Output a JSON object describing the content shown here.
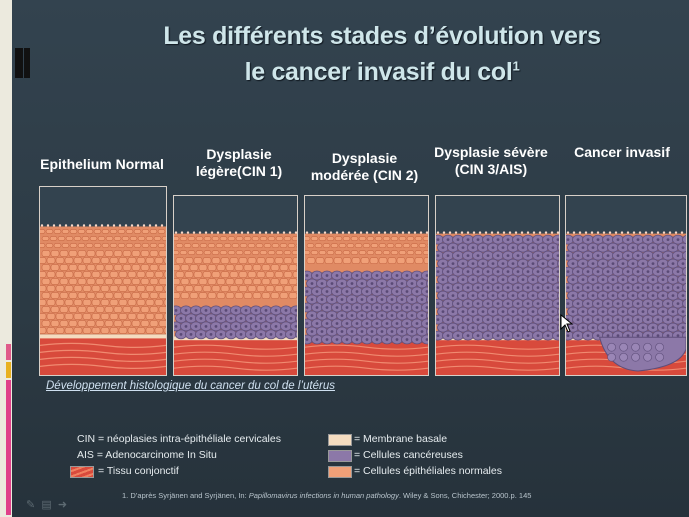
{
  "title": {
    "line1": "Les différents stades d’évolution vers",
    "line2": "le cancer invasif du col",
    "sup": "1"
  },
  "stages": [
    {
      "label": "Epithelium Normal",
      "cancer_level": 0.0
    },
    {
      "label": "Dysplasie légère(CIN 1)",
      "cancer_level": 0.33
    },
    {
      "label": "Dysplasie modérée (CIN 2)",
      "cancer_level": 0.66
    },
    {
      "label": "Dysplasie sévère (CIN 3/AIS)",
      "cancer_level": 1.0
    },
    {
      "label": "Cancer invasif",
      "cancer_level": 1.0
    }
  ],
  "caption": "Développement histologique du cancer du col de l’utérus",
  "legend": {
    "cin": "CIN = néoplasies intra-épithéliale cervicales",
    "ais": "AIS = Adenocarcinome In Situ",
    "tissu": "= Tissu conjonctif",
    "membrane": "= Membrane basale",
    "cancereuses": "= Cellules cancéreuses",
    "normales": "= Cellules épithéliales normales"
  },
  "reference": {
    "prefix": "1. D’après Syrjänen and Syrjänen, In: ",
    "italic": "Papillomavirus infections in human pathology",
    "suffix": ". Wiley & Sons, Chichester; 2000.p. 145"
  },
  "colors": {
    "normal_cells": "#f0a078",
    "cancer_cells": "#8c78a8",
    "connective": "#d84a3c",
    "membrane": "#f4dcc0"
  }
}
